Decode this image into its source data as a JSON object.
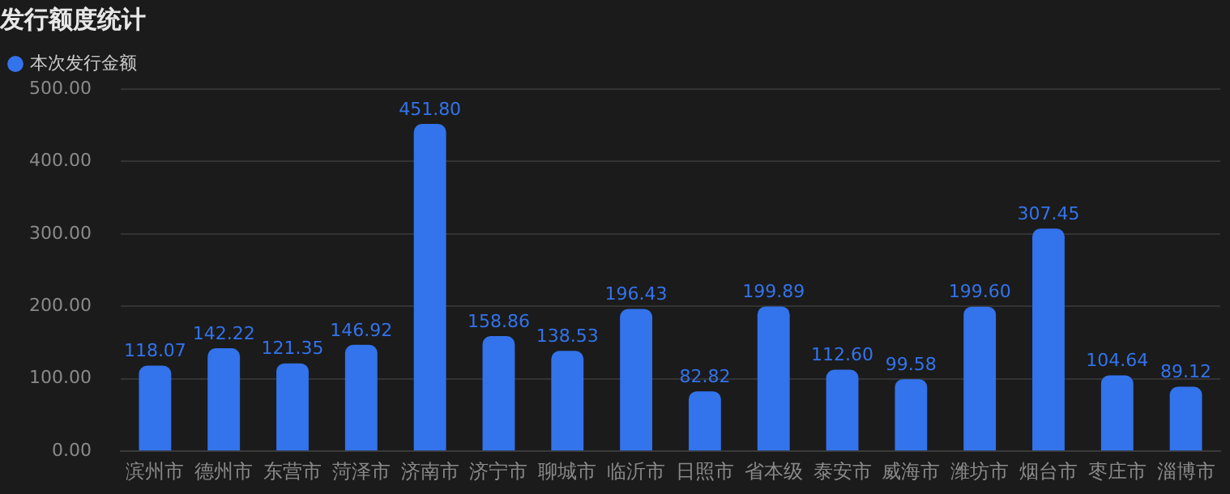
{
  "chart_data": {
    "type": "bar",
    "title": "发行额度统计",
    "categories": [
      "滨州市",
      "德州市",
      "东营市",
      "菏泽市",
      "济南市",
      "济宁市",
      "聊城市",
      "临沂市",
      "日照市",
      "省本级",
      "泰安市",
      "威海市",
      "潍坊市",
      "烟台市",
      "枣庄市",
      "淄博市"
    ],
    "series": [
      {
        "name": "本次发行金额",
        "color": "#3373ec",
        "values": [
          118.07,
          142.22,
          121.35,
          146.92,
          451.8,
          158.86,
          138.53,
          196.43,
          82.82,
          199.89,
          112.6,
          99.58,
          199.6,
          307.45,
          104.64,
          89.12
        ],
        "value_labels": [
          "118.07",
          "142.22",
          "121.35",
          "146.92",
          "451.80",
          "158.86",
          "138.53",
          "196.43",
          "82.82",
          "199.89",
          "112.60",
          "99.58",
          "199.60",
          "307.45",
          "104.64",
          "89.12"
        ]
      }
    ],
    "ylim": [
      0,
      500
    ],
    "yticks": [
      {
        "value": 0,
        "label": "0.00"
      },
      {
        "value": 100,
        "label": "100.00"
      },
      {
        "value": 200,
        "label": "200.00"
      },
      {
        "value": 300,
        "label": "300.00"
      },
      {
        "value": 400,
        "label": "400.00"
      },
      {
        "value": 500,
        "label": "500.00"
      }
    ],
    "grid": "y",
    "legend": "top left"
  }
}
